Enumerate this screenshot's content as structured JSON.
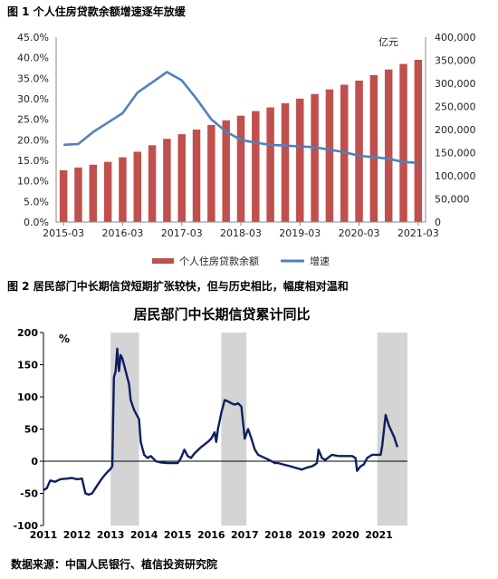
{
  "figure1": {
    "title": "图 1 个人住房贷款余额增速逐年放缓",
    "unit_label": "亿元",
    "legend": {
      "bar": "个人住房贷款余额",
      "line": "增速"
    },
    "colors": {
      "bar": "#c0504d",
      "line": "#4f81bd"
    }
  },
  "figure2": {
    "title": "图 2 居民部门中长期信贷短期扩张较快，但与历史相比，幅度相对温和",
    "chart_title": "居民部门中长期信贷累计同比",
    "unit_label": "%",
    "colors": {
      "line": "#0e1f5e",
      "shade": "#d4d4d4"
    }
  },
  "source": "数据来源：中国人民银行、植信投资研究院",
  "chart_data": [
    {
      "type": "bar",
      "x_ticks": [
        "2015-03",
        "2016-03",
        "2017-03",
        "2018-03",
        "2019-03",
        "2020-03",
        "2021-03"
      ],
      "quarters": [
        "2015-03",
        "2015-06",
        "2015-09",
        "2015-12",
        "2016-03",
        "2016-06",
        "2016-09",
        "2016-12",
        "2017-03",
        "2017-06",
        "2017-09",
        "2017-12",
        "2018-03",
        "2018-06",
        "2018-09",
        "2018-12",
        "2019-03",
        "2019-06",
        "2019-09",
        "2019-12",
        "2020-03",
        "2020-06",
        "2020-09",
        "2020-12",
        "2021-03"
      ],
      "series": [
        {
          "name": "个人住房贷款余额",
          "axis": "right",
          "values": [
            112000,
            118000,
            124000,
            130000,
            140000,
            152000,
            166000,
            180000,
            190000,
            200000,
            210000,
            220000,
            230000,
            240000,
            248000,
            257000,
            267000,
            277000,
            287000,
            297000,
            306000,
            318000,
            330000,
            342000,
            351000
          ]
        },
        {
          "name": "增速",
          "axis": "left",
          "values": [
            18.8,
            19.0,
            21.9,
            24.2,
            26.5,
            31.5,
            34.0,
            36.5,
            34.5,
            30.0,
            25.0,
            22.0,
            20.0,
            19.3,
            18.8,
            18.6,
            18.4,
            18.2,
            17.6,
            17.0,
            16.1,
            15.8,
            15.4,
            14.6,
            14.4
          ]
        }
      ],
      "y_left": {
        "ticks": [
          "0.0%",
          "5.0%",
          "10.0%",
          "15.0%",
          "20.0%",
          "25.0%",
          "30.0%",
          "35.0%",
          "40.0%",
          "45.0%"
        ],
        "range": [
          0,
          45
        ]
      },
      "y_right": {
        "ticks": [
          "0",
          "50,000",
          "100,000",
          "150,000",
          "200,000",
          "250,000",
          "300,000",
          "350,000",
          "400,000"
        ],
        "range": [
          0,
          400000
        ]
      }
    },
    {
      "type": "line",
      "x_ticks": [
        "2011",
        "2012",
        "2013",
        "2014",
        "2015",
        "2016",
        "2017",
        "2018",
        "2019",
        "2020",
        "2021"
      ],
      "y_ticks": [
        "200",
        "150",
        "100",
        "50",
        "0",
        "-50",
        "-100"
      ],
      "y_range": [
        -100,
        200
      ],
      "x_range": [
        2011.0,
        2021.85
      ],
      "shaded_periods": [
        [
          2013.0,
          2013.85
        ],
        [
          2016.3,
          2017.05
        ],
        [
          2020.95,
          2021.85
        ]
      ],
      "series": [
        {
          "name": "",
          "points": [
            [
              2011.0,
              -45
            ],
            [
              2011.1,
              -42
            ],
            [
              2011.2,
              -30
            ],
            [
              2011.35,
              -32
            ],
            [
              2011.5,
              -28
            ],
            [
              2011.7,
              -27
            ],
            [
              2011.85,
              -26
            ],
            [
              2012.0,
              -28
            ],
            [
              2012.15,
              -27
            ],
            [
              2012.25,
              -50
            ],
            [
              2012.35,
              -52
            ],
            [
              2012.45,
              -50
            ],
            [
              2012.55,
              -42
            ],
            [
              2012.7,
              -30
            ],
            [
              2012.85,
              -20
            ],
            [
              2013.0,
              -12
            ],
            [
              2013.05,
              -8
            ],
            [
              2013.1,
              130
            ],
            [
              2013.15,
              140
            ],
            [
              2013.2,
              175
            ],
            [
              2013.25,
              140
            ],
            [
              2013.3,
              165
            ],
            [
              2013.35,
              160
            ],
            [
              2013.45,
              140
            ],
            [
              2013.55,
              120
            ],
            [
              2013.6,
              95
            ],
            [
              2013.7,
              80
            ],
            [
              2013.8,
              70
            ],
            [
              2013.85,
              65
            ],
            [
              2013.9,
              30
            ],
            [
              2014.0,
              10
            ],
            [
              2014.1,
              5
            ],
            [
              2014.2,
              8
            ],
            [
              2014.35,
              0
            ],
            [
              2014.5,
              -2
            ],
            [
              2014.7,
              -3
            ],
            [
              2014.9,
              -3
            ],
            [
              2015.0,
              -3
            ],
            [
              2015.1,
              5
            ],
            [
              2015.2,
              18
            ],
            [
              2015.3,
              8
            ],
            [
              2015.4,
              5
            ],
            [
              2015.5,
              12
            ],
            [
              2015.7,
              22
            ],
            [
              2015.9,
              30
            ],
            [
              2016.0,
              35
            ],
            [
              2016.1,
              45
            ],
            [
              2016.15,
              30
            ],
            [
              2016.2,
              50
            ],
            [
              2016.3,
              75
            ],
            [
              2016.4,
              95
            ],
            [
              2016.5,
              93
            ],
            [
              2016.6,
              90
            ],
            [
              2016.7,
              88
            ],
            [
              2016.8,
              90
            ],
            [
              2016.9,
              85
            ],
            [
              2017.0,
              35
            ],
            [
              2017.1,
              50
            ],
            [
              2017.2,
              35
            ],
            [
              2017.3,
              18
            ],
            [
              2017.4,
              10
            ],
            [
              2017.6,
              5
            ],
            [
              2017.8,
              0
            ],
            [
              2017.9,
              -3
            ],
            [
              2018.0,
              -3
            ],
            [
              2018.15,
              -5
            ],
            [
              2018.3,
              -7
            ],
            [
              2018.5,
              -10
            ],
            [
              2018.7,
              -13
            ],
            [
              2018.85,
              -10
            ],
            [
              2019.0,
              -8
            ],
            [
              2019.1,
              -5
            ],
            [
              2019.15,
              -3
            ],
            [
              2019.2,
              18
            ],
            [
              2019.3,
              5
            ],
            [
              2019.4,
              2
            ],
            [
              2019.6,
              10
            ],
            [
              2019.8,
              8
            ],
            [
              2020.0,
              8
            ],
            [
              2020.2,
              8
            ],
            [
              2020.3,
              5
            ],
            [
              2020.35,
              -15
            ],
            [
              2020.45,
              -8
            ],
            [
              2020.55,
              -5
            ],
            [
              2020.65,
              5
            ],
            [
              2020.8,
              10
            ],
            [
              2020.95,
              10
            ],
            [
              2021.05,
              10
            ],
            [
              2021.1,
              25
            ],
            [
              2021.2,
              72
            ],
            [
              2021.3,
              55
            ],
            [
              2021.45,
              38
            ],
            [
              2021.55,
              22
            ]
          ]
        }
      ]
    }
  ]
}
